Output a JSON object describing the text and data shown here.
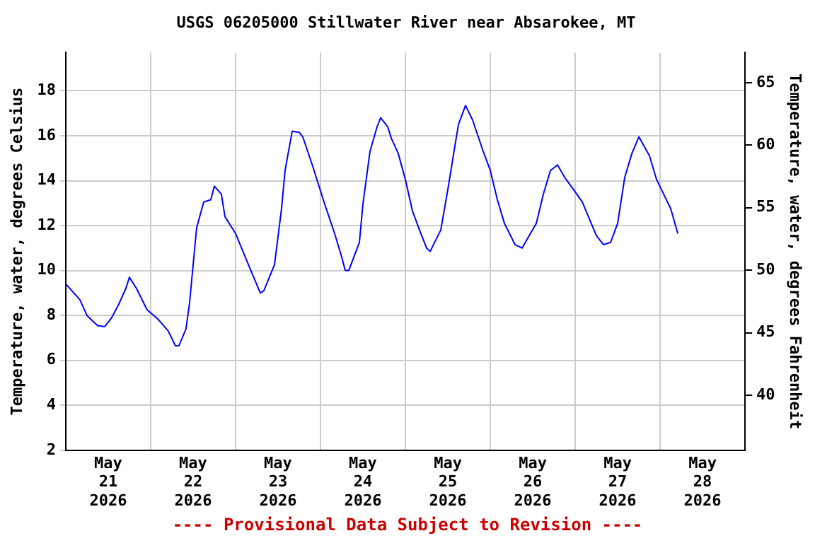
{
  "chart_data": {
    "type": "line",
    "title": "USGS 06205000 Stillwater River near Absarokee, MT",
    "ylabel": "Temperature, water, degrees Celsius",
    "y2label": "Temperature, water, degrees Fahrenheit",
    "annotations": [
      "---- Provisional Data Subject to Revision ----"
    ],
    "xlim": [
      "2026-05-21T00:00",
      "2026-05-29T00:00"
    ],
    "xticks": [
      {
        "value": "2026-05-21T00:00",
        "label": null
      },
      {
        "value": "2026-05-21T12:00",
        "label": "May 21 2026"
      },
      {
        "value": "2026-05-22T00:00",
        "label": null
      },
      {
        "value": "2026-05-22T12:00",
        "label": "May 22 2026"
      },
      {
        "value": "2026-05-23T00:00",
        "label": null
      },
      {
        "value": "2026-05-23T12:00",
        "label": "May 23 2026"
      },
      {
        "value": "2026-05-24T00:00",
        "label": null
      },
      {
        "value": "2026-05-24T12:00",
        "label": "May 24 2026"
      },
      {
        "value": "2026-05-25T00:00",
        "label": null
      },
      {
        "value": "2026-05-25T12:00",
        "label": "May 25 2026"
      },
      {
        "value": "2026-05-26T00:00",
        "label": null
      },
      {
        "value": "2026-05-26T12:00",
        "label": "May 26 2026"
      },
      {
        "value": "2026-05-27T00:00",
        "label": null
      },
      {
        "value": "2026-05-27T12:00",
        "label": "May 27 2026"
      },
      {
        "value": "2026-05-28T00:00",
        "label": null
      },
      {
        "value": "2026-05-28T12:00",
        "label": "May 28 2026"
      },
      {
        "value": "2026-05-29T00:00",
        "label": null
      }
    ],
    "ylim": [
      2,
      19.7
    ],
    "yticks": [
      2,
      4,
      6,
      8,
      10,
      12,
      14,
      16,
      18
    ],
    "y2lim": [
      35.6,
      67.4
    ],
    "y2ticks": [
      40,
      45,
      50,
      55,
      60,
      65
    ],
    "grid": true,
    "legend": false,
    "marker": "none",
    "line_style": "solid",
    "series": [
      {
        "color": "#0000ff",
        "x": [
          "2026-05-21T00:00",
          "2026-05-21T04:00",
          "2026-05-21T06:00",
          "2026-05-21T09:00",
          "2026-05-21T11:00",
          "2026-05-21T13:00",
          "2026-05-21T15:00",
          "2026-05-21T17:00",
          "2026-05-21T18:00",
          "2026-05-21T20:00",
          "2026-05-21T23:00",
          "2026-05-22T02:00",
          "2026-05-22T05:00",
          "2026-05-22T07:00",
          "2026-05-22T08:00",
          "2026-05-22T10:00",
          "2026-05-22T11:00",
          "2026-05-22T13:00",
          "2026-05-22T15:00",
          "2026-05-22T17:00",
          "2026-05-22T18:00",
          "2026-05-22T20:00",
          "2026-05-22T21:00",
          "2026-05-23T00:00",
          "2026-05-23T03:00",
          "2026-05-23T05:00",
          "2026-05-23T07:00",
          "2026-05-23T08:00",
          "2026-05-23T11:00",
          "2026-05-23T13:00",
          "2026-05-23T14:00",
          "2026-05-23T16:00",
          "2026-05-23T18:00",
          "2026-05-23T19:00",
          "2026-05-23T22:00",
          "2026-05-24T01:00",
          "2026-05-24T04:00",
          "2026-05-24T06:00",
          "2026-05-24T07:00",
          "2026-05-24T08:00",
          "2026-05-24T11:00",
          "2026-05-24T12:00",
          "2026-05-24T14:00",
          "2026-05-24T16:00",
          "2026-05-24T17:00",
          "2026-05-24T19:00",
          "2026-05-24T20:00",
          "2026-05-24T22:00",
          "2026-05-25T00:00",
          "2026-05-25T02:00",
          "2026-05-25T04:00",
          "2026-05-25T06:00",
          "2026-05-25T07:00",
          "2026-05-25T10:00",
          "2026-05-25T12:00",
          "2026-05-25T14:00",
          "2026-05-25T15:00",
          "2026-05-25T17:00",
          "2026-05-25T19:00",
          "2026-05-25T22:00",
          "2026-05-26T00:00",
          "2026-05-26T02:00",
          "2026-05-26T04:00",
          "2026-05-26T07:00",
          "2026-05-26T09:00",
          "2026-05-26T11:00",
          "2026-05-26T13:00",
          "2026-05-26T15:00",
          "2026-05-26T17:00",
          "2026-05-26T19:00",
          "2026-05-26T21:00",
          "2026-05-27T00:00",
          "2026-05-27T02:00",
          "2026-05-27T04:00",
          "2026-05-27T06:00",
          "2026-05-27T08:00",
          "2026-05-27T10:00",
          "2026-05-27T12:00",
          "2026-05-27T14:00",
          "2026-05-27T16:00",
          "2026-05-27T18:00",
          "2026-05-27T21:00",
          "2026-05-27T23:00",
          "2026-05-28T01:00",
          "2026-05-28T03:00",
          "2026-05-28T05:00"
        ],
        "values": [
          9.4,
          8.7,
          8.0,
          7.55,
          7.5,
          7.9,
          8.5,
          9.2,
          9.7,
          9.2,
          8.25,
          7.85,
          7.3,
          6.65,
          6.65,
          7.4,
          8.55,
          11.9,
          13.05,
          13.15,
          13.75,
          13.4,
          12.4,
          11.65,
          10.5,
          9.75,
          9.0,
          9.1,
          10.25,
          12.75,
          14.45,
          16.2,
          16.15,
          15.95,
          14.55,
          13.05,
          11.65,
          10.6,
          10.0,
          10.0,
          11.25,
          12.95,
          15.3,
          16.4,
          16.8,
          16.4,
          15.9,
          15.2,
          14.05,
          12.65,
          11.8,
          11.0,
          10.85,
          11.8,
          13.6,
          15.55,
          16.5,
          17.35,
          16.7,
          15.3,
          14.45,
          13.15,
          12.1,
          11.15,
          11.0,
          11.55,
          12.1,
          13.4,
          14.45,
          14.7,
          14.15,
          13.5,
          13.05,
          12.3,
          11.55,
          11.15,
          11.25,
          12.1,
          14.15,
          15.2,
          15.95,
          15.1,
          14.05,
          13.4,
          12.75,
          11.65
        ]
      }
    ]
  }
}
